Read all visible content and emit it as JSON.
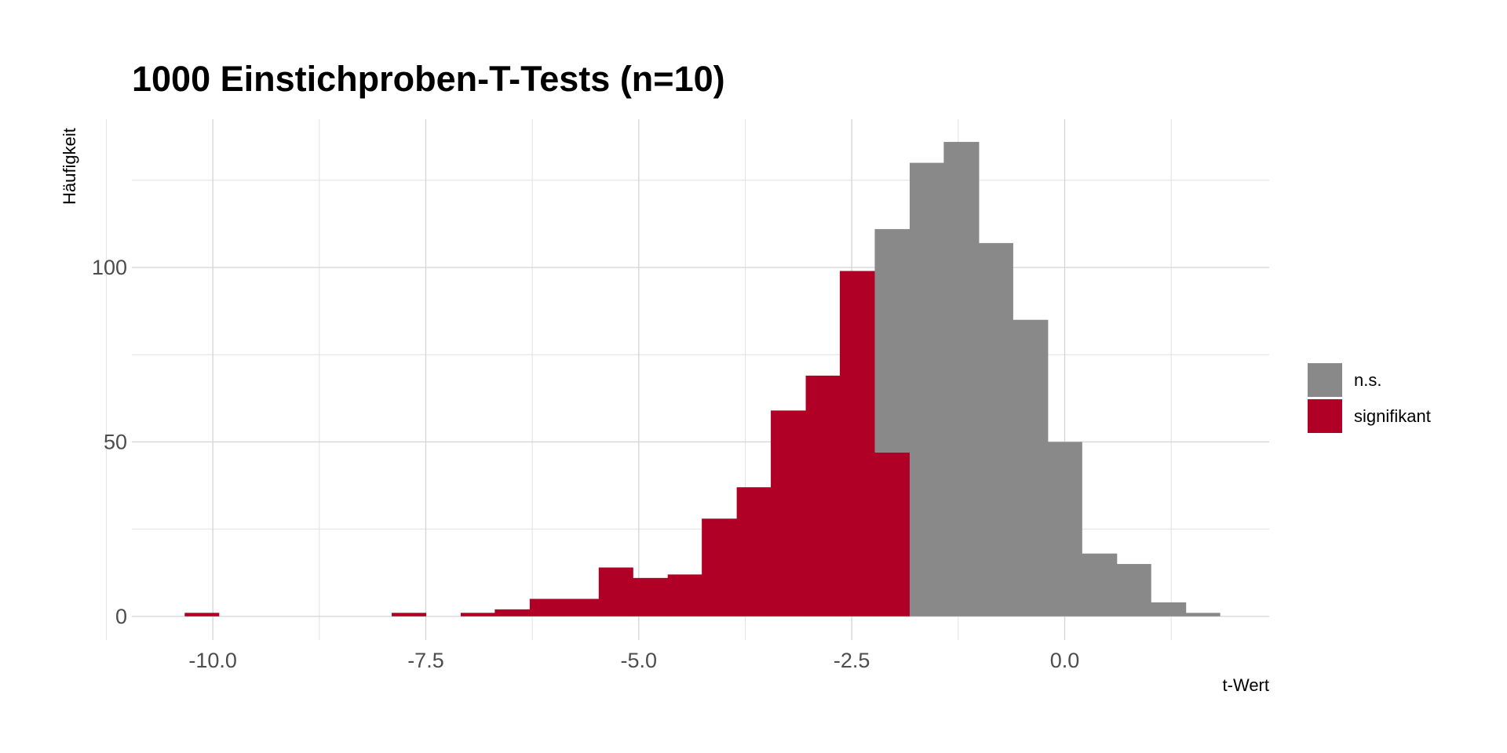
{
  "chart_data": {
    "type": "bar",
    "subtype": "stacked-histogram",
    "title": "1000 Einstichproben-T-Tests (n=10)",
    "xlabel": "t-Wert",
    "ylabel": "Häufigkeit",
    "xlim": [
      -10.95,
      2.4
    ],
    "ylim": [
      -6.8,
      142.5
    ],
    "x_ticks": [
      -10,
      -7.5,
      -5,
      -2.5,
      0
    ],
    "x_tick_labels": [
      "-10.0",
      "-7.5",
      "-5.0",
      "-2.5",
      "0.0"
    ],
    "y_ticks": [
      0,
      50,
      100
    ],
    "y_tick_labels": [
      "0",
      "50",
      "100"
    ],
    "grid": true,
    "legend_position": "right",
    "series": [
      {
        "name": "n.s.",
        "color": "#898989",
        "bins": [
          {
            "x0": -2.23,
            "x1": -1.82,
            "value": 64
          },
          {
            "x0": -1.82,
            "x1": -1.42,
            "value": 130
          },
          {
            "x0": -1.42,
            "x1": -1.01,
            "value": 136
          },
          {
            "x0": -1.01,
            "x1": -0.61,
            "value": 107
          },
          {
            "x0": -0.61,
            "x1": -0.2,
            "value": 85
          },
          {
            "x0": -0.2,
            "x1": 0.2,
            "value": 50
          },
          {
            "x0": 0.2,
            "x1": 0.61,
            "value": 18
          },
          {
            "x0": 0.61,
            "x1": 1.01,
            "value": 15
          },
          {
            "x0": 1.01,
            "x1": 1.42,
            "value": 4
          },
          {
            "x0": 1.42,
            "x1": 1.82,
            "value": 1
          }
        ]
      },
      {
        "name": "signifikant",
        "color": "#b10026",
        "bins": [
          {
            "x0": -10.33,
            "x1": -9.93,
            "value": 1
          },
          {
            "x0": -7.9,
            "x1": -7.5,
            "value": 1
          },
          {
            "x0": -7.09,
            "x1": -6.69,
            "value": 1
          },
          {
            "x0": -6.69,
            "x1": -6.28,
            "value": 2
          },
          {
            "x0": -6.28,
            "x1": -5.88,
            "value": 5
          },
          {
            "x0": -5.88,
            "x1": -5.47,
            "value": 5
          },
          {
            "x0": -5.47,
            "x1": -5.07,
            "value": 14
          },
          {
            "x0": -5.07,
            "x1": -4.66,
            "value": 11
          },
          {
            "x0": -4.66,
            "x1": -4.26,
            "value": 12
          },
          {
            "x0": -4.26,
            "x1": -3.85,
            "value": 28
          },
          {
            "x0": -3.85,
            "x1": -3.45,
            "value": 37
          },
          {
            "x0": -3.45,
            "x1": -3.04,
            "value": 59
          },
          {
            "x0": -3.04,
            "x1": -2.64,
            "value": 69
          },
          {
            "x0": -2.64,
            "x1": -2.23,
            "value": 99
          },
          {
            "x0": -2.23,
            "x1": -1.82,
            "value": 47
          }
        ]
      }
    ]
  }
}
